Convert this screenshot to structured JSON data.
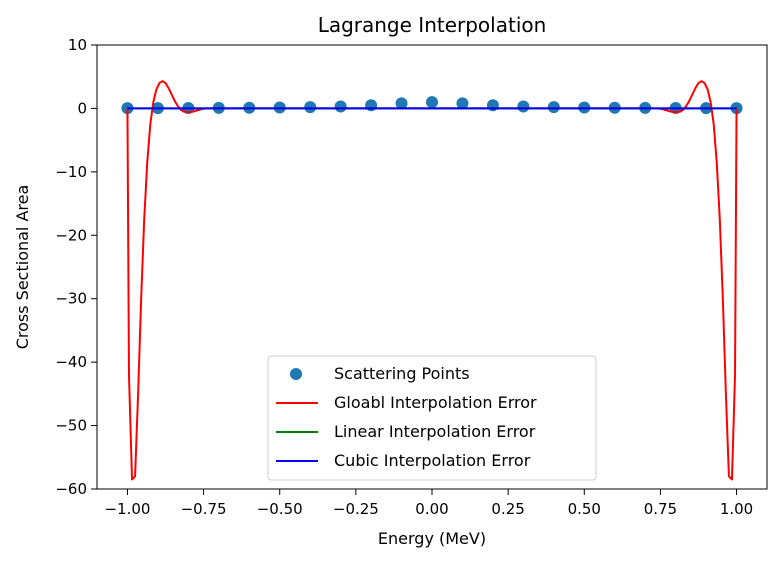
{
  "chart_data": {
    "type": "line",
    "title": "Lagrange Interpolation",
    "xlabel": "Energy (MeV)",
    "ylabel": "Cross Sectional Area",
    "xlim": [
      -1.1,
      1.1
    ],
    "ylim": [
      -60,
      10
    ],
    "x_ticks": [
      -1.0,
      -0.75,
      -0.5,
      -0.25,
      0.0,
      0.25,
      0.5,
      0.75,
      1.0
    ],
    "x_tick_labels": [
      "−1.00",
      "−0.75",
      "−0.50",
      "−0.25",
      "0.00",
      "0.25",
      "0.50",
      "0.75",
      "1.00"
    ],
    "y_ticks": [
      10,
      0,
      -10,
      -20,
      -30,
      -40,
      -50,
      -60
    ],
    "y_tick_labels": [
      "10",
      "0",
      "−10",
      "−20",
      "−30",
      "−40",
      "−50",
      "−60"
    ],
    "grid": false,
    "legend_position": "lower-center",
    "series": [
      {
        "name": "Scattering Points",
        "kind": "scatter",
        "color": "#1f77b4",
        "x": [
          -1.0,
          -0.9,
          -0.8,
          -0.7,
          -0.6,
          -0.5,
          -0.4,
          -0.3,
          -0.2,
          -0.1,
          0.0,
          0.1,
          0.2,
          0.3,
          0.4,
          0.5,
          0.6,
          0.7,
          0.8,
          0.9,
          1.0
        ],
        "y": [
          0.04,
          0.05,
          0.06,
          0.08,
          0.1,
          0.14,
          0.2,
          0.31,
          0.5,
          0.8,
          1.0,
          0.8,
          0.5,
          0.31,
          0.2,
          0.14,
          0.1,
          0.08,
          0.06,
          0.05,
          0.04
        ]
      },
      {
        "name": "Gloabl Interpolation Error",
        "kind": "line",
        "color": "#ff0000",
        "x": [
          -1.0,
          -0.995,
          -0.985,
          -0.975,
          -0.965,
          -0.955,
          -0.945,
          -0.935,
          -0.925,
          -0.915,
          -0.905,
          -0.895,
          -0.885,
          -0.875,
          -0.865,
          -0.855,
          -0.845,
          -0.835,
          -0.825,
          -0.815,
          -0.8,
          -0.785,
          -0.77,
          -0.755,
          -0.74,
          -0.72,
          -0.7,
          -0.6,
          -0.5,
          -0.4,
          -0.3,
          -0.2,
          -0.1,
          0.0,
          0.1,
          0.2,
          0.3,
          0.4,
          0.5,
          0.6,
          0.7,
          0.72,
          0.74,
          0.755,
          0.77,
          0.785,
          0.8,
          0.815,
          0.825,
          0.835,
          0.845,
          0.855,
          0.865,
          0.875,
          0.885,
          0.895,
          0.905,
          0.915,
          0.925,
          0.935,
          0.945,
          0.955,
          0.965,
          0.975,
          0.985,
          0.995,
          1.0
        ],
        "y": [
          0.0,
          -42.0,
          -58.5,
          -58.0,
          -45.0,
          -30.0,
          -17.5,
          -8.5,
          -2.5,
          1.0,
          3.0,
          4.0,
          4.3,
          4.0,
          3.2,
          2.2,
          1.2,
          0.4,
          -0.2,
          -0.5,
          -0.6,
          -0.5,
          -0.3,
          -0.1,
          0.0,
          0.0,
          0.0,
          0.0,
          0.0,
          0.0,
          0.0,
          0.0,
          0.0,
          0.0,
          0.0,
          0.0,
          0.0,
          0.0,
          0.0,
          0.0,
          0.0,
          0.0,
          0.0,
          -0.1,
          -0.3,
          -0.5,
          -0.6,
          -0.5,
          -0.2,
          0.4,
          1.2,
          2.2,
          3.2,
          4.0,
          4.3,
          4.0,
          3.0,
          1.0,
          -2.5,
          -8.5,
          -17.5,
          -30.0,
          -45.0,
          -58.0,
          -58.5,
          -42.0,
          0.0
        ]
      },
      {
        "name": "Linear Interpolation Error",
        "kind": "line",
        "color": "#008000",
        "x": [
          -1.0,
          1.0
        ],
        "y": [
          0.0,
          0.0
        ]
      },
      {
        "name": "Cubic Interpolation Error",
        "kind": "line",
        "color": "#0000ff",
        "x": [
          -1.0,
          1.0
        ],
        "y": [
          0.0,
          0.0
        ]
      }
    ]
  }
}
